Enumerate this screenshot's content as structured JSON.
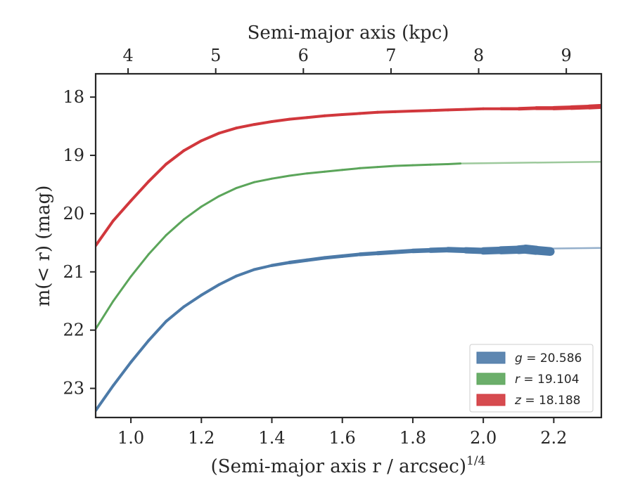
{
  "chart_data": {
    "type": "line",
    "title": "",
    "xlabel": "(Semi-major axis r / arcsec)",
    "xlabel_sup": "1/4",
    "ylabel": "m(< r) (mag)",
    "xlabel_top": "Semi-major axis (kpc)",
    "xlim": [
      0.9,
      2.335
    ],
    "ylim": [
      23.5,
      17.6
    ],
    "y_inverted": true,
    "x_ticks": [
      1.0,
      1.2,
      1.4,
      1.6,
      1.8,
      2.0,
      2.2
    ],
    "x_tick_labels": [
      "1.0",
      "1.2",
      "1.4",
      "1.6",
      "1.8",
      "2.0",
      "2.2"
    ],
    "y_ticks": [
      18,
      19,
      20,
      21,
      22,
      23
    ],
    "y_tick_labels": [
      "18",
      "19",
      "20",
      "21",
      "22",
      "23"
    ],
    "top_ticks_kpc": [
      4,
      5,
      6,
      7,
      8,
      9
    ],
    "top_tick_labels": [
      "4",
      "5",
      "6",
      "7",
      "8",
      "9"
    ],
    "top_axis_kpc_range": [
      3.63,
      9.4
    ],
    "grid": false,
    "legend_position": "bottom-right",
    "series": [
      {
        "name": "g = 20.586",
        "legend_var": "g",
        "legend_value": "= 20.586",
        "color": "#4c7aa8",
        "x": [
          0.9,
          0.95,
          1.0,
          1.05,
          1.1,
          1.15,
          1.2,
          1.25,
          1.3,
          1.35,
          1.4,
          1.45,
          1.5,
          1.55,
          1.6,
          1.65,
          1.7,
          1.75,
          1.8,
          1.85,
          1.9,
          1.95,
          2.0,
          2.05,
          2.1,
          2.12,
          2.15,
          2.19
        ],
        "y": [
          23.38,
          22.95,
          22.55,
          22.18,
          21.85,
          21.6,
          21.4,
          21.22,
          21.07,
          20.96,
          20.89,
          20.84,
          20.8,
          20.76,
          20.73,
          20.7,
          20.68,
          20.66,
          20.64,
          20.63,
          20.62,
          20.63,
          20.64,
          20.63,
          20.62,
          20.61,
          20.63,
          20.65
        ],
        "band_width": [
          4,
          4,
          4,
          4,
          4,
          4,
          4,
          4,
          4,
          4,
          4,
          5,
          5,
          5,
          5,
          5,
          6,
          6,
          6,
          7,
          8,
          8,
          10,
          11,
          12,
          13,
          13,
          12
        ],
        "extension_x": [
          2.19,
          2.335
        ],
        "extension_y": [
          20.6,
          20.59
        ]
      },
      {
        "name": "r = 19.104",
        "legend_var": "r",
        "legend_value": "= 19.104",
        "color": "#5ba55a",
        "x": [
          0.9,
          0.95,
          1.0,
          1.05,
          1.1,
          1.15,
          1.2,
          1.25,
          1.3,
          1.35,
          1.4,
          1.45,
          1.5,
          1.55,
          1.6,
          1.65,
          1.7,
          1.75,
          1.8,
          1.85,
          1.9,
          1.935
        ],
        "y": [
          21.98,
          21.5,
          21.08,
          20.7,
          20.37,
          20.1,
          19.88,
          19.7,
          19.56,
          19.46,
          19.4,
          19.35,
          19.31,
          19.28,
          19.25,
          19.22,
          19.2,
          19.18,
          19.17,
          19.16,
          19.15,
          19.14
        ],
        "band_width": [
          3,
          3,
          3,
          3,
          3,
          3,
          3,
          3,
          3,
          3,
          3,
          3,
          3,
          3,
          3,
          3,
          3,
          3,
          3,
          3,
          3,
          3
        ],
        "extension_x": [
          1.935,
          2.335
        ],
        "extension_y": [
          19.14,
          19.11
        ]
      },
      {
        "name": "z = 18.188",
        "legend_var": "z",
        "legend_value": "= 18.188",
        "color": "#d1373c",
        "x": [
          0.9,
          0.95,
          1.0,
          1.05,
          1.1,
          1.15,
          1.2,
          1.25,
          1.3,
          1.35,
          1.4,
          1.45,
          1.5,
          1.55,
          1.6,
          1.65,
          1.7,
          1.75,
          1.8,
          1.85,
          1.9,
          1.95,
          2.0,
          2.05,
          2.1,
          2.15,
          2.2,
          2.25,
          2.3,
          2.335
        ],
        "y": [
          20.55,
          20.12,
          19.78,
          19.45,
          19.15,
          18.92,
          18.75,
          18.62,
          18.53,
          18.47,
          18.42,
          18.38,
          18.35,
          18.32,
          18.3,
          18.28,
          18.26,
          18.25,
          18.24,
          18.23,
          18.22,
          18.21,
          18.2,
          18.2,
          18.2,
          18.19,
          18.19,
          18.18,
          18.17,
          18.16
        ],
        "band_width": [
          4,
          4,
          4,
          4,
          4,
          4,
          4,
          4,
          4,
          4,
          4,
          4,
          4,
          4,
          4,
          4,
          4,
          4,
          4,
          4,
          4,
          4,
          4,
          4,
          5,
          5,
          6,
          6,
          7,
          7
        ],
        "extension_x": [],
        "extension_y": []
      }
    ]
  }
}
